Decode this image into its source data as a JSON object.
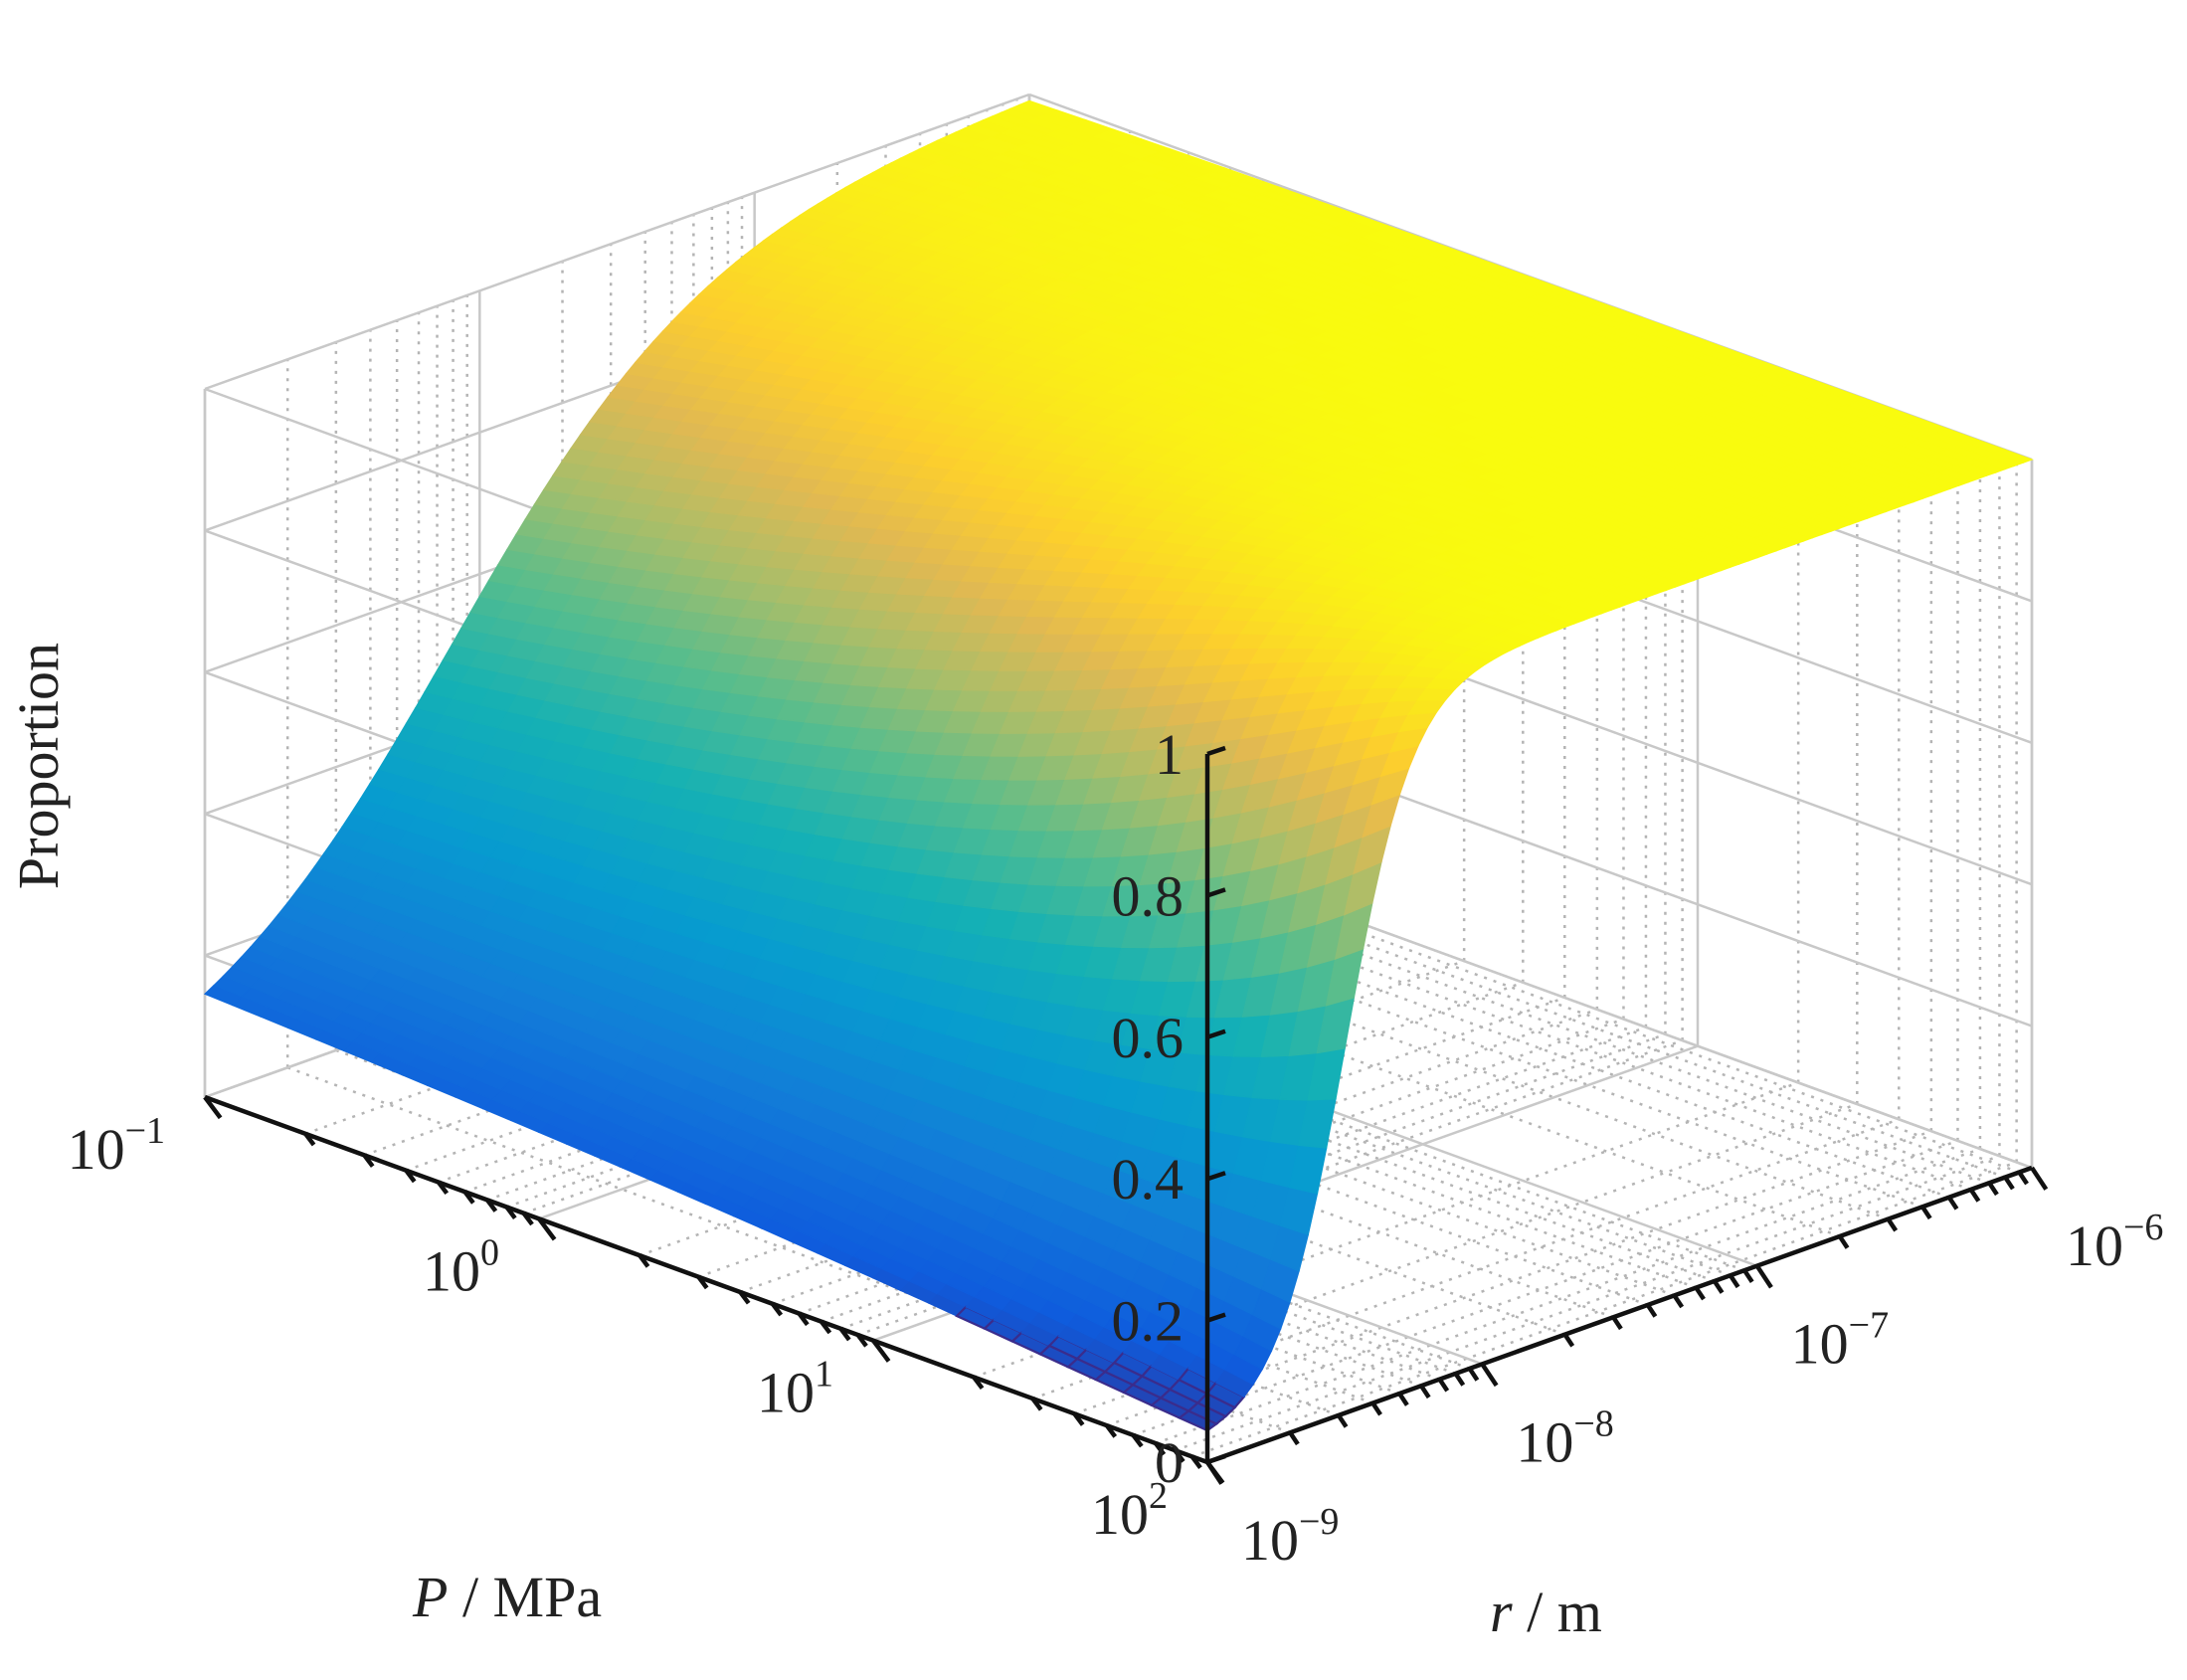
{
  "chart_data": {
    "type": "surface3d",
    "title": "",
    "zlabel": "Proportion",
    "xlabel": {
      "italic": "P",
      "rest": " / MPa"
    },
    "ylabel": {
      "italic": "r",
      "rest": " / m"
    },
    "x_scale": "log",
    "y_scale": "log",
    "x_range": [
      0.1,
      100
    ],
    "y_range": [
      1e-09,
      1e-06
    ],
    "z_range": [
      0,
      1
    ],
    "z_ticks": [
      {
        "value": 0,
        "label": "0"
      },
      {
        "value": 0.2,
        "label": "0.2"
      },
      {
        "value": 0.4,
        "label": "0.4"
      },
      {
        "value": 0.6,
        "label": "0.6"
      },
      {
        "value": 0.8,
        "label": "0.8"
      },
      {
        "value": 1,
        "label": "1"
      }
    ],
    "x_ticks": [
      {
        "exp": -1,
        "base": "10",
        "sup": "−1"
      },
      {
        "exp": 0,
        "base": "10",
        "sup": "0"
      },
      {
        "exp": 1,
        "base": "10",
        "sup": "1"
      },
      {
        "exp": 2,
        "base": "10",
        "sup": "2"
      }
    ],
    "y_ticks": [
      {
        "exp": -9,
        "base": "10",
        "sup": "−9"
      },
      {
        "exp": -8,
        "base": "10",
        "sup": "−8"
      },
      {
        "exp": -7,
        "base": "10",
        "sup": "−7"
      },
      {
        "exp": -6,
        "base": "10",
        "sup": "−6"
      }
    ],
    "grid": true,
    "colormap": "parula",
    "surface_model": {
      "description_free": true,
      "z_min": 0.03,
      "logr_transition_low_P": -8.1,
      "logr_transition_high_P": -8.5,
      "width_low_P": 0.45,
      "width_high_P": 0.12
    }
  }
}
